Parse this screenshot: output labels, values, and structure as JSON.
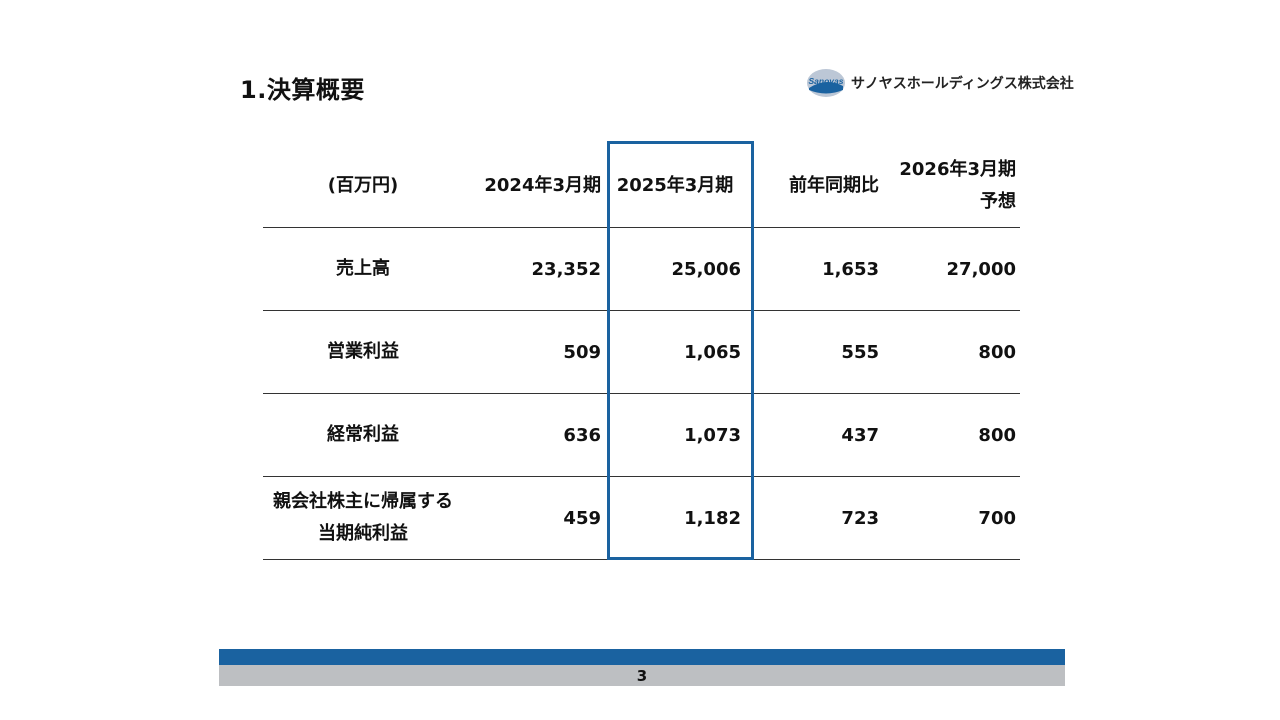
{
  "title": "1.決算概要",
  "logo": {
    "mark_text": "Sanoyas",
    "company_name": "サノヤスホールディングス株式会社"
  },
  "table": {
    "headers": {
      "unit": "(百万円)",
      "fy2024": "2024年3月期",
      "fy2025": "2025年3月期",
      "yoy": "前年同期比",
      "fy2026_line1": "2026年3月期",
      "fy2026_line2": "予想"
    },
    "rows": [
      {
        "label_line1": "売上高",
        "label_line2": "",
        "fy2024": "23,352",
        "fy2025": "25,006",
        "yoy": "1,653",
        "fy2026": "27,000"
      },
      {
        "label_line1": "営業利益",
        "label_line2": "",
        "fy2024": "509",
        "fy2025": "1,065",
        "yoy": "555",
        "fy2026": "800"
      },
      {
        "label_line1": "経常利益",
        "label_line2": "",
        "fy2024": "636",
        "fy2025": "1,073",
        "yoy": "437",
        "fy2026": "800"
      },
      {
        "label_line1": "親会社株主に帰属する",
        "label_line2": "当期純利益",
        "fy2024": "459",
        "fy2025": "1,182",
        "yoy": "723",
        "fy2026": "700"
      }
    ]
  },
  "colors": {
    "accent_blue": "#1a62a0",
    "footer_gray": "#bdbfc2"
  },
  "footer": {
    "page_number": "3"
  }
}
